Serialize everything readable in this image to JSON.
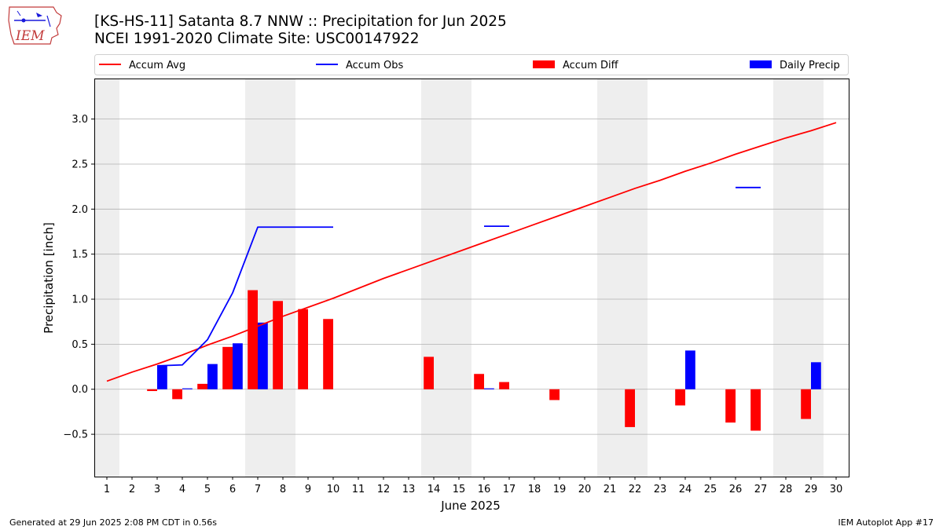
{
  "title": {
    "line1": "[KS-HS-11] Satanta 8.7 NNW :: Precipitation for Jun 2025",
    "line2": "NCEI 1991-2020 Climate Site: USC00147922"
  },
  "logo": {
    "text": "IEM",
    "icon": "iem-iowa-logo-icon"
  },
  "footer": {
    "left": "Generated at 29 Jun 2025 2:08 PM CDT in 0.56s",
    "right": "IEM Autoplot App #17"
  },
  "colors": {
    "avg": "#ff0000",
    "obs": "#0000ff",
    "diff": "#ff0000",
    "daily": "#0000ff",
    "weekend_shade": "#eeeeee",
    "grid": "#b0b0b0"
  },
  "chart_data": {
    "type": "bar",
    "xlabel": "June 2025",
    "ylabel": "Precipitation [inch]",
    "ylim": [
      -0.97,
      3.45
    ],
    "yticks": [
      -0.5,
      0.0,
      0.5,
      1.0,
      1.5,
      2.0,
      2.5,
      3.0
    ],
    "ytick_labels": [
      "−0.5",
      "0.0",
      "0.5",
      "1.0",
      "1.5",
      "2.0",
      "2.5",
      "3.0"
    ],
    "xlim": [
      0.5,
      30.5
    ],
    "x": [
      1,
      2,
      3,
      4,
      5,
      6,
      7,
      8,
      9,
      10,
      11,
      12,
      13,
      14,
      15,
      16,
      17,
      18,
      19,
      20,
      21,
      22,
      23,
      24,
      25,
      26,
      27,
      28,
      29,
      30
    ],
    "xtick_labels": [
      "1",
      "2",
      "3",
      "4",
      "5",
      "6",
      "7",
      "8",
      "9",
      "10",
      "11",
      "12",
      "13",
      "14",
      "15",
      "16",
      "17",
      "18",
      "19",
      "20",
      "21",
      "22",
      "23",
      "24",
      "25",
      "26",
      "27",
      "28",
      "29",
      "30"
    ],
    "grid": true,
    "legend_placement": "top (above plot)",
    "shaded_days": [
      [
        0.5,
        1.5
      ],
      [
        6.5,
        8.5
      ],
      [
        13.5,
        15.5
      ],
      [
        20.5,
        22.5
      ],
      [
        27.5,
        29.5
      ]
    ],
    "legend": [
      {
        "label": "Accum Avg",
        "kind": "line",
        "color": "#ff0000"
      },
      {
        "label": "Accum Obs",
        "kind": "line",
        "color": "#0000ff"
      },
      {
        "label": "Accum Diff",
        "kind": "bar",
        "color": "#ff0000"
      },
      {
        "label": "Daily Precip",
        "kind": "bar",
        "color": "#0000ff"
      }
    ],
    "series": [
      {
        "name": "Accum Avg",
        "kind": "line",
        "color": "#ff0000",
        "values": [
          0.09,
          0.19,
          0.28,
          0.38,
          0.49,
          0.59,
          0.7,
          0.81,
          0.91,
          1.01,
          1.12,
          1.23,
          1.33,
          1.43,
          1.53,
          1.63,
          1.73,
          1.83,
          1.93,
          2.03,
          2.13,
          2.23,
          2.32,
          2.42,
          2.51,
          2.61,
          2.7,
          2.79,
          2.87,
          2.96
        ]
      },
      {
        "name": "Accum Obs",
        "kind": "line",
        "color": "#0000ff",
        "values": [
          null,
          null,
          0.26,
          0.27,
          0.55,
          1.07,
          1.8,
          1.8,
          1.8,
          1.8,
          null,
          null,
          null,
          null,
          null,
          1.81,
          1.81,
          null,
          null,
          null,
          null,
          null,
          null,
          null,
          null,
          2.24,
          2.24,
          null,
          null,
          null
        ]
      },
      {
        "name": "Accum Diff",
        "kind": "bar",
        "color": "#ff0000",
        "values": [
          null,
          null,
          -0.02,
          -0.11,
          0.06,
          0.47,
          1.1,
          0.98,
          0.89,
          0.78,
          null,
          null,
          null,
          0.36,
          null,
          0.17,
          0.08,
          null,
          -0.12,
          null,
          null,
          -0.42,
          null,
          -0.18,
          null,
          -0.37,
          -0.46,
          null,
          -0.33,
          null
        ]
      },
      {
        "name": "Daily Precip",
        "kind": "bar",
        "color": "#0000ff",
        "values": [
          null,
          null,
          0.26,
          0.01,
          0.28,
          0.51,
          0.74,
          null,
          null,
          null,
          null,
          null,
          null,
          null,
          null,
          0.01,
          null,
          null,
          null,
          null,
          null,
          null,
          null,
          0.43,
          null,
          null,
          null,
          null,
          0.3,
          null
        ]
      }
    ]
  }
}
